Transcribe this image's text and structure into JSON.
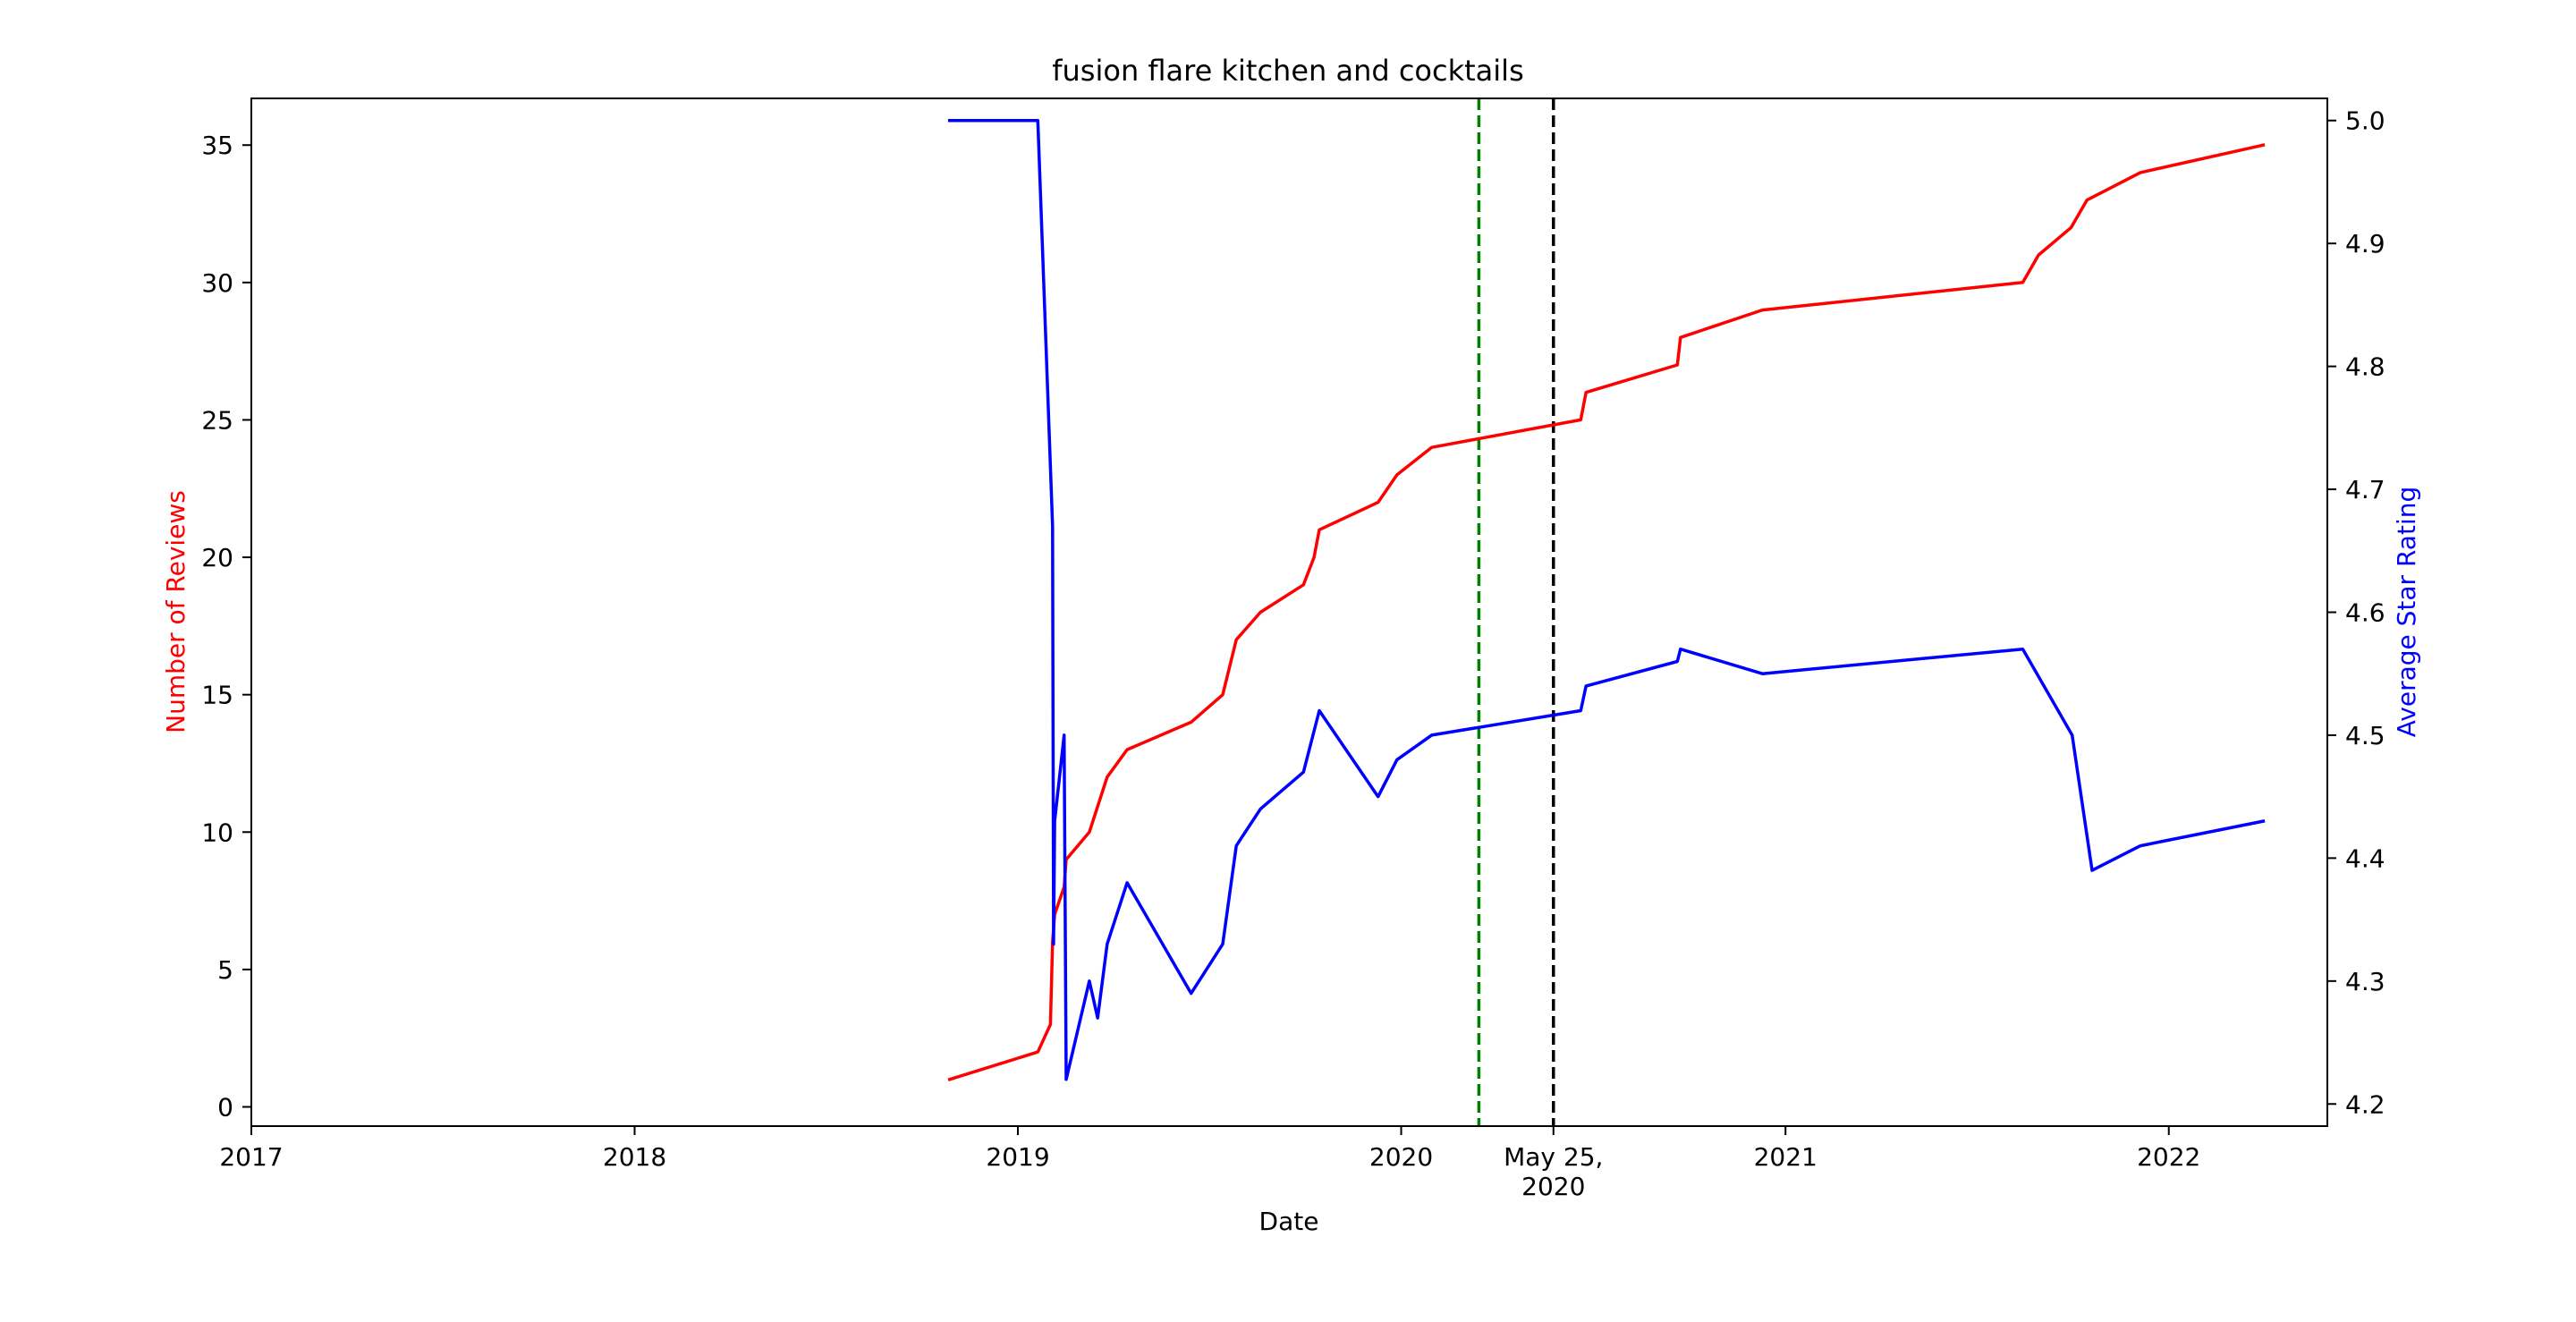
{
  "chart_data": {
    "type": "line",
    "title": "fusion flare kitchen and cocktails",
    "xlabel": "Date",
    "ylabel_left": "Number of Reviews",
    "ylabel_right": "Average Star Rating",
    "xlim": [
      "2017-01-01",
      "2022-06-01"
    ],
    "ylim_left": [
      -0.7,
      36.7
    ],
    "ylim_right": [
      4.182,
      5.018
    ],
    "x_ticks": [
      {
        "date": "2017-01-01",
        "label": "2017"
      },
      {
        "date": "2018-01-01",
        "label": "2018"
      },
      {
        "date": "2019-01-01",
        "label": "2019"
      },
      {
        "date": "2020-01-01",
        "label": "2020"
      },
      {
        "date": "2020-05-25",
        "label": "May 25,\n2020"
      },
      {
        "date": "2021-01-01",
        "label": "2021"
      },
      {
        "date": "2022-01-01",
        "label": "2022"
      }
    ],
    "y_ticks_left": [
      0,
      5,
      10,
      15,
      20,
      25,
      30,
      35
    ],
    "y_ticks_right": [
      4.2,
      4.3,
      4.4,
      4.5,
      4.6,
      4.7,
      4.8,
      4.9,
      5.0
    ],
    "vlines": [
      {
        "date": "2020-03-15",
        "color": "#008000"
      },
      {
        "date": "2020-05-25",
        "color": "#000000"
      }
    ],
    "series": [
      {
        "axis": "left",
        "color": "#ff0000",
        "points": [
          [
            "2018-10-28",
            1
          ],
          [
            "2019-01-20",
            2
          ],
          [
            "2019-02-01",
            3
          ],
          [
            "2019-02-03",
            6
          ],
          [
            "2019-02-05",
            7
          ],
          [
            "2019-02-14",
            8
          ],
          [
            "2019-02-16",
            9
          ],
          [
            "2019-03-10",
            10
          ],
          [
            "2019-03-27",
            12
          ],
          [
            "2019-04-15",
            13
          ],
          [
            "2019-06-15",
            14
          ],
          [
            "2019-07-15",
            15
          ],
          [
            "2019-07-28",
            17
          ],
          [
            "2019-08-20",
            18
          ],
          [
            "2019-09-30",
            19
          ],
          [
            "2019-10-10",
            20
          ],
          [
            "2019-10-15",
            21
          ],
          [
            "2019-12-10",
            22
          ],
          [
            "2019-12-28",
            23
          ],
          [
            "2020-01-30",
            24
          ],
          [
            "2020-06-20",
            25
          ],
          [
            "2020-06-25",
            26
          ],
          [
            "2020-09-20",
            27
          ],
          [
            "2020-09-23",
            28
          ],
          [
            "2020-12-10",
            29
          ],
          [
            "2021-08-15",
            30
          ],
          [
            "2021-08-30",
            31
          ],
          [
            "2021-09-30",
            32
          ],
          [
            "2021-10-15",
            33
          ],
          [
            "2021-12-05",
            34
          ],
          [
            "2022-04-01",
            35
          ]
        ]
      },
      {
        "axis": "right",
        "color": "#0000ff",
        "points": [
          [
            "2018-10-28",
            5.0
          ],
          [
            "2019-01-20",
            5.0
          ],
          [
            "2019-02-03",
            4.67
          ],
          [
            "2019-02-04",
            4.33
          ],
          [
            "2019-02-05",
            4.43
          ],
          [
            "2019-02-14",
            4.5
          ],
          [
            "2019-02-16",
            4.22
          ],
          [
            "2019-03-10",
            4.3
          ],
          [
            "2019-03-18",
            4.27
          ],
          [
            "2019-03-27",
            4.33
          ],
          [
            "2019-04-15",
            4.38
          ],
          [
            "2019-06-15",
            4.29
          ],
          [
            "2019-07-15",
            4.33
          ],
          [
            "2019-07-28",
            4.41
          ],
          [
            "2019-08-20",
            4.44
          ],
          [
            "2019-09-30",
            4.47
          ],
          [
            "2019-10-15",
            4.52
          ],
          [
            "2019-12-10",
            4.45
          ],
          [
            "2019-12-28",
            4.48
          ],
          [
            "2020-01-30",
            4.5
          ],
          [
            "2020-06-20",
            4.52
          ],
          [
            "2020-06-25",
            4.54
          ],
          [
            "2020-09-20",
            4.56
          ],
          [
            "2020-09-23",
            4.57
          ],
          [
            "2020-12-10",
            4.55
          ],
          [
            "2021-08-15",
            4.57
          ],
          [
            "2021-10-01",
            4.5
          ],
          [
            "2021-10-20",
            4.39
          ],
          [
            "2021-12-05",
            4.41
          ],
          [
            "2022-04-01",
            4.43
          ]
        ]
      }
    ]
  }
}
